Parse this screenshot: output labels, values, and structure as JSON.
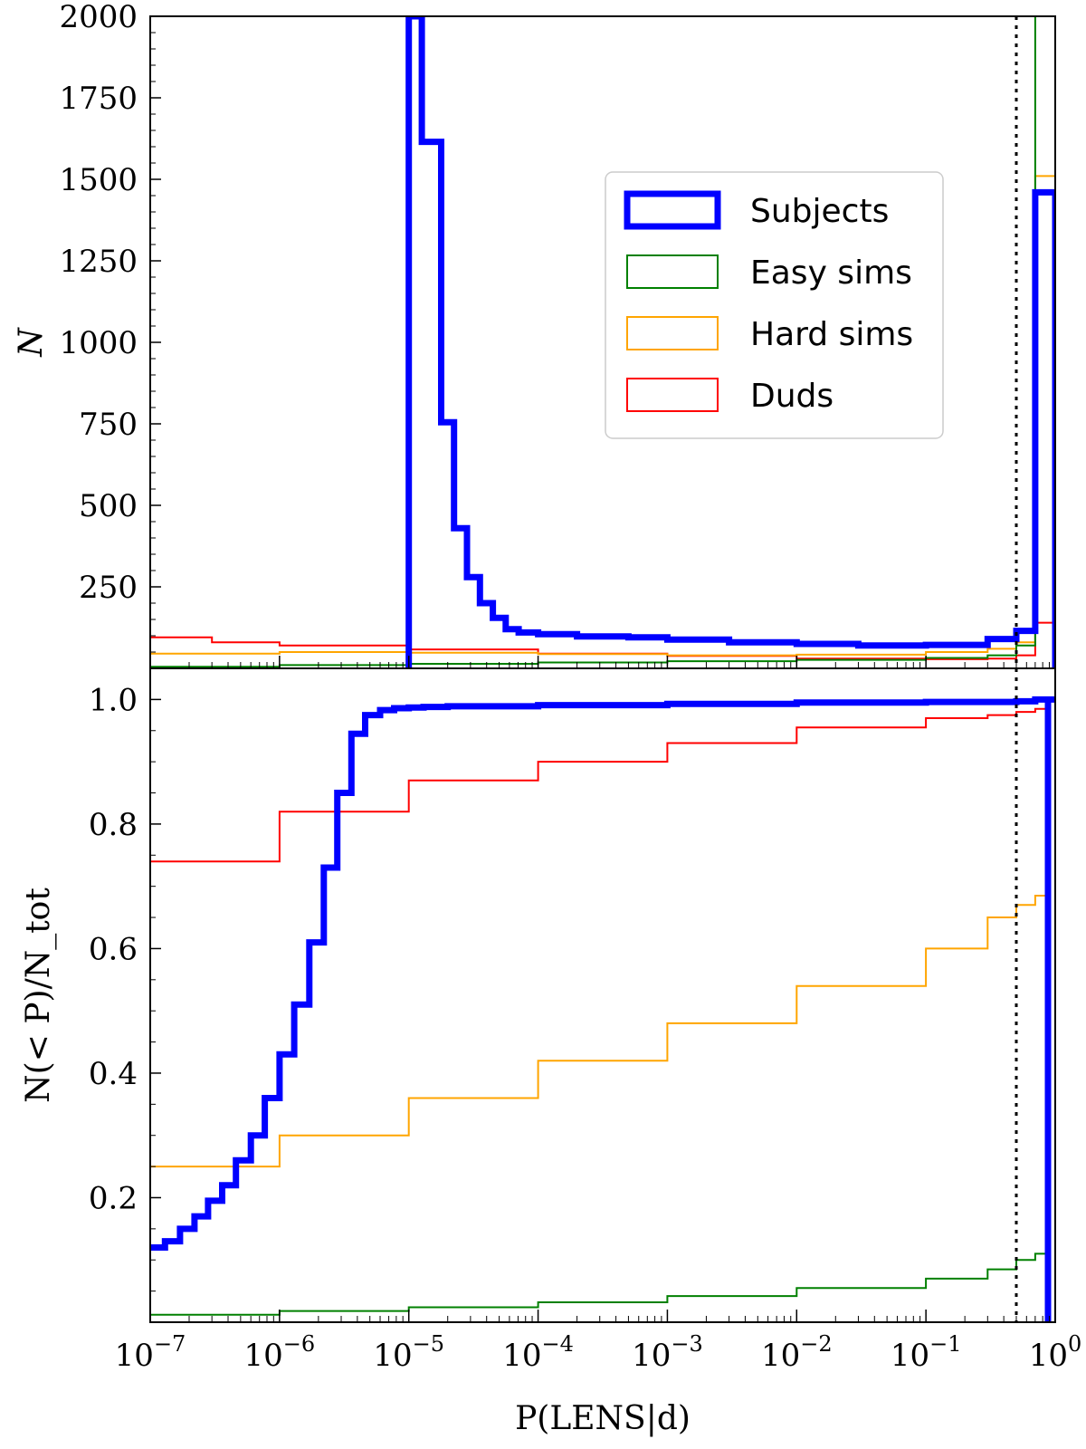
{
  "chart_data": [
    {
      "type": "histogram",
      "title": "",
      "xlabel": "",
      "ylabel": "N",
      "xscale": "log",
      "xlim": [
        1e-07,
        1
      ],
      "ylim": [
        0,
        2000
      ],
      "yticks": [
        250,
        500,
        750,
        1000,
        1250,
        1500,
        1750,
        2000
      ],
      "ytick_labels": [
        "250",
        "500",
        "750",
        "1000",
        "1250",
        "1500",
        "1750",
        "2000"
      ],
      "threshold_line": 0.5,
      "legend": {
        "position": "upper-right",
        "entries": [
          {
            "label": "Subjects",
            "color": "#0000ff"
          },
          {
            "label": "Easy sims",
            "color": "#008000"
          },
          {
            "label": "Hard sims",
            "color": "#ffa500"
          },
          {
            "label": "Duds",
            "color": "#ff0000"
          }
        ]
      },
      "series": [
        {
          "name": "Subjects",
          "color": "#0000ff",
          "bins": [
            [
              1e-05,
              1.26e-05,
              2000
            ],
            [
              1.26e-05,
              1.78e-05,
              1615
            ],
            [
              1.78e-05,
              2.24e-05,
              755
            ],
            [
              2.24e-05,
              2.82e-05,
              430
            ],
            [
              2.82e-05,
              3.55e-05,
              280
            ],
            [
              3.55e-05,
              4.47e-05,
              200
            ],
            [
              4.47e-05,
              5.62e-05,
              155
            ],
            [
              5.62e-05,
              7.08e-05,
              120
            ],
            [
              7.08e-05,
              0.0001,
              110
            ],
            [
              0.0001,
              0.0002,
              105
            ],
            [
              0.0002,
              0.0005,
              98
            ],
            [
              0.0005,
              0.001,
              95
            ],
            [
              0.001,
              0.003,
              88
            ],
            [
              0.003,
              0.01,
              80
            ],
            [
              0.01,
              0.03,
              75
            ],
            [
              0.03,
              0.1,
              70
            ],
            [
              0.1,
              0.3,
              72
            ],
            [
              0.3,
              0.5,
              90
            ],
            [
              0.5,
              0.7,
              115
            ],
            [
              0.7,
              0.85,
              1460
            ],
            [
              0.85,
              1.0,
              1460
            ]
          ]
        },
        {
          "name": "Easy sims",
          "color": "#008000",
          "bins": [
            [
              1e-07,
              1e-06,
              5
            ],
            [
              1e-06,
              1e-05,
              10
            ],
            [
              1e-05,
              0.0001,
              14
            ],
            [
              0.0001,
              0.001,
              18
            ],
            [
              0.001,
              0.01,
              22
            ],
            [
              0.01,
              0.1,
              26
            ],
            [
              0.1,
              0.3,
              32
            ],
            [
              0.3,
              0.5,
              40
            ],
            [
              0.5,
              0.7,
              70
            ],
            [
              0.7,
              0.85,
              2000
            ],
            [
              0.85,
              1.0,
              2000
            ]
          ]
        },
        {
          "name": "Hard sims",
          "color": "#ffa500",
          "bins": [
            [
              1e-07,
              1e-06,
              45
            ],
            [
              1e-06,
              1e-05,
              50
            ],
            [
              1e-05,
              0.0001,
              48
            ],
            [
              0.0001,
              0.001,
              44
            ],
            [
              0.001,
              0.01,
              40
            ],
            [
              0.01,
              0.1,
              42
            ],
            [
              0.1,
              0.3,
              50
            ],
            [
              0.3,
              0.5,
              60
            ],
            [
              0.5,
              0.7,
              80
            ],
            [
              0.7,
              0.85,
              1510
            ],
            [
              0.85,
              1.0,
              1510
            ]
          ]
        },
        {
          "name": "Duds",
          "color": "#ff0000",
          "bins": [
            [
              1e-07,
              3e-07,
              95
            ],
            [
              3e-07,
              1e-06,
              80
            ],
            [
              1e-06,
              1e-05,
              70
            ],
            [
              1e-05,
              0.0001,
              58
            ],
            [
              0.0001,
              0.001,
              45
            ],
            [
              0.001,
              0.01,
              38
            ],
            [
              0.01,
              0.1,
              30
            ],
            [
              0.1,
              0.3,
              28
            ],
            [
              0.3,
              0.5,
              30
            ],
            [
              0.5,
              0.7,
              40
            ],
            [
              0.7,
              0.85,
              140
            ],
            [
              0.85,
              1.0,
              140
            ]
          ]
        }
      ]
    },
    {
      "type": "line",
      "subtype": "cumulative-step",
      "title": "",
      "xlabel": "P(LENS|d)",
      "ylabel": "N(< P)/N_tot",
      "xscale": "log",
      "xlim": [
        1e-07,
        1
      ],
      "ylim": [
        0,
        1.05
      ],
      "yticks": [
        0.2,
        0.4,
        0.6,
        0.8,
        1.0
      ],
      "ytick_labels": [
        "0.2",
        "0.4",
        "0.6",
        "0.8",
        "1.0"
      ],
      "xticks": [
        1e-07,
        1e-06,
        1e-05,
        0.0001,
        0.001,
        0.01,
        0.1,
        1
      ],
      "xtick_labels": [
        {
          "base": "10",
          "exp": "−7"
        },
        {
          "base": "10",
          "exp": "−6"
        },
        {
          "base": "10",
          "exp": "−5"
        },
        {
          "base": "10",
          "exp": "−4"
        },
        {
          "base": "10",
          "exp": "−3"
        },
        {
          "base": "10",
          "exp": "−2"
        },
        {
          "base": "10",
          "exp": "−1"
        },
        {
          "base": "10",
          "exp": "0"
        }
      ],
      "threshold_line": 0.5,
      "series": [
        {
          "name": "Subjects",
          "color": "#0000ff",
          "x": [
            1e-07,
            1.3e-07,
            1.7e-07,
            2.2e-07,
            2.8e-07,
            3.6e-07,
            4.6e-07,
            6e-07,
            7.7e-07,
            1e-06,
            1.3e-06,
            1.7e-06,
            2.2e-06,
            2.8e-06,
            3.6e-06,
            4.6e-06,
            6e-06,
            7.7e-06,
            1e-05,
            1.3e-05,
            2e-05,
            0.0001,
            0.001,
            0.01,
            0.1,
            0.5,
            0.7,
            1.0
          ],
          "y": [
            0.12,
            0.13,
            0.15,
            0.17,
            0.195,
            0.22,
            0.26,
            0.3,
            0.36,
            0.43,
            0.51,
            0.61,
            0.73,
            0.85,
            0.945,
            0.975,
            0.983,
            0.986,
            0.987,
            0.988,
            0.989,
            0.991,
            0.993,
            0.995,
            0.996,
            0.997,
            1.0,
            1.0
          ]
        },
        {
          "name": "Easy sims",
          "color": "#008000",
          "x": [
            1e-07,
            1e-06,
            1e-05,
            0.0001,
            0.001,
            0.01,
            0.1,
            0.3,
            0.5,
            0.7,
            0.85
          ],
          "y": [
            0.012,
            0.018,
            0.024,
            0.032,
            0.042,
            0.055,
            0.07,
            0.085,
            0.1,
            0.11,
            0.69
          ]
        },
        {
          "name": "Hard sims",
          "color": "#ffa500",
          "x": [
            1e-07,
            1e-06,
            1e-05,
            0.0001,
            0.001,
            0.01,
            0.1,
            0.3,
            0.5,
            0.7,
            0.85
          ],
          "y": [
            0.25,
            0.3,
            0.36,
            0.42,
            0.48,
            0.54,
            0.6,
            0.65,
            0.67,
            0.685,
            1.0
          ]
        },
        {
          "name": "Duds",
          "color": "#ff0000",
          "x": [
            1e-07,
            1e-06,
            1e-05,
            0.0001,
            0.001,
            0.01,
            0.1,
            0.3,
            0.5,
            0.7,
            0.85
          ],
          "y": [
            0.74,
            0.82,
            0.87,
            0.9,
            0.93,
            0.955,
            0.97,
            0.975,
            0.98,
            0.985,
            1.0
          ]
        }
      ]
    }
  ]
}
